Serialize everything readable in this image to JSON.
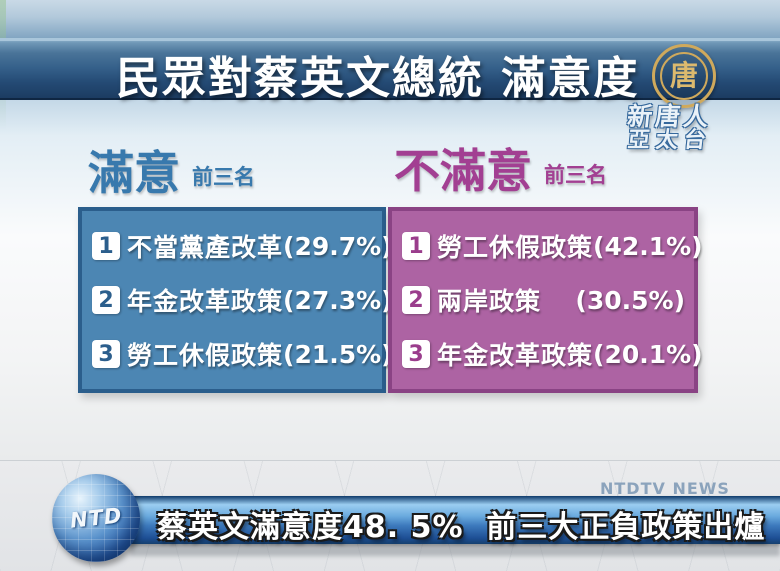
{
  "banner": {
    "title": "民眾對蔡英文總統 滿意度",
    "seal_char": "唐",
    "station_line1": "新唐人",
    "station_line2": "亞太台"
  },
  "panels": {
    "satisfied": {
      "title": "滿意",
      "subtitle": "前三名",
      "rows": [
        {
          "rank": "1",
          "label": "不當黨產改革",
          "pct": "(29.7%)"
        },
        {
          "rank": "2",
          "label": "年金改革政策",
          "pct": "(27.3%)"
        },
        {
          "rank": "3",
          "label": "勞工休假政策",
          "pct": "(21.5%)"
        }
      ]
    },
    "dissatisfied": {
      "title": "不滿意",
      "subtitle": "前三名",
      "rows": [
        {
          "rank": "1",
          "label": "勞工休假政策",
          "pct": "(42.1%)"
        },
        {
          "rank": "2",
          "label": "兩岸政策",
          "pct": "(30.5%)"
        },
        {
          "rank": "3",
          "label": "年金改革政策",
          "pct": "(20.1%)"
        }
      ]
    }
  },
  "ticker": {
    "text": "蔡英文滿意度48. 5%  前三大正負政策出爐",
    "logo_text": "NTD"
  },
  "watermark": "NTDTV NEWS",
  "colors": {
    "satisfied_fill": "#4c86b3",
    "satisfied_border": "#2b5e8c",
    "satisfied_title": "#3879ad",
    "dissatisfied_fill": "#ad63a3",
    "dissatisfied_border": "#8a4384",
    "dissatisfied_title": "#a23f92",
    "banner_top": "#4a7499",
    "banner_bottom": "#1b3a5f",
    "ticker_light": "#9bcdf1",
    "ticker_dark": "#1d4e94",
    "seal_gold": "#cfa95c"
  },
  "chart_data": {
    "type": "table",
    "title": "民眾對蔡英文總統 滿意度",
    "overall_satisfaction_pct": 48.5,
    "series": [
      {
        "name": "滿意 前三名",
        "categories": [
          "不當黨產改革",
          "年金改革政策",
          "勞工休假政策"
        ],
        "values": [
          29.7,
          27.3,
          21.5
        ]
      },
      {
        "name": "不滿意 前三名",
        "categories": [
          "勞工休假政策",
          "兩岸政策",
          "年金改革政策"
        ],
        "values": [
          42.1,
          30.5,
          20.1
        ]
      }
    ]
  }
}
